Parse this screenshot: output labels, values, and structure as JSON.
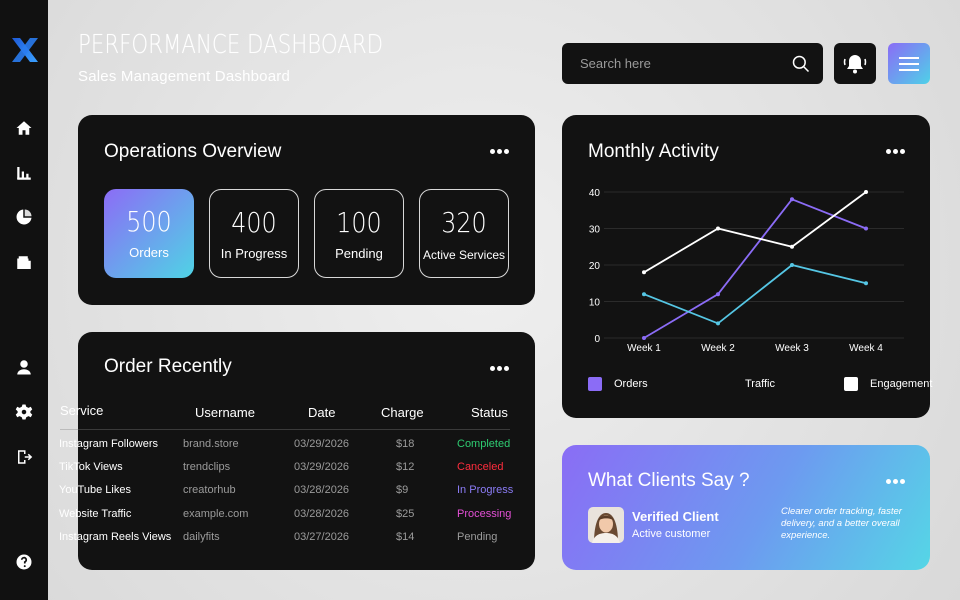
{
  "header": {
    "title": "PERFORMANCE DASHBOARD",
    "subtitle": "Sales Management Dashboard",
    "search_placeholder": "Search here"
  },
  "sidebar": {
    "icons": [
      "home-icon",
      "bar-chart-icon",
      "pie-chart-icon",
      "wallet-icon",
      "user-icon",
      "gear-icon",
      "logout-icon",
      "help-icon"
    ]
  },
  "operations": {
    "title": "Operations Overview",
    "stats": [
      {
        "value": "500",
        "label": "Orders"
      },
      {
        "value": "400",
        "label": "In Progress"
      },
      {
        "value": "100",
        "label": "Pending"
      },
      {
        "value": "320",
        "label": "Active Services"
      }
    ]
  },
  "orders": {
    "title": "Order Recently",
    "headers": [
      "Service",
      "Username",
      "Date",
      "Charge",
      "Status"
    ],
    "rows": [
      {
        "service": "Instagram Followers",
        "username": "brand.store",
        "date": "03/29/2026",
        "charge": "$18",
        "status": "Completed",
        "status_color": "#2ecc71"
      },
      {
        "service": "TikTok Views",
        "username": "trendclips",
        "date": "03/29/2026",
        "charge": "$12",
        "status": "Canceled",
        "status_color": "#ff2d3d"
      },
      {
        "service": "YouTube Likes",
        "username": "creatorhub",
        "date": "03/28/2026",
        "charge": "$9",
        "status": "In Progress",
        "status_color": "#8b7cf6"
      },
      {
        "service": "Website Traffic",
        "username": "example.com",
        "date": "03/28/2026",
        "charge": "$25",
        "status": "Processing",
        "status_color": "#e44fd6"
      },
      {
        "service": "Instagram Reels Views",
        "username": "dailyfits",
        "date": "03/27/2026",
        "charge": "$14",
        "status": "Pending",
        "status_color": "#9b9b9b"
      }
    ]
  },
  "activity": {
    "title": "Monthly Activity",
    "legend": [
      {
        "label": "Orders",
        "color": "#8b6cf6"
      },
      {
        "label": "Traffic",
        "color": "#55c6e4"
      },
      {
        "label": "Engagement",
        "color": "#ffffff"
      }
    ]
  },
  "chart_data": {
    "type": "line",
    "categories": [
      "Week 1",
      "Week 2",
      "Week 3",
      "Week 4"
    ],
    "series": [
      {
        "name": "Orders",
        "values": [
          0,
          12,
          38,
          30
        ],
        "color": "#8b6cf6"
      },
      {
        "name": "Traffic",
        "values": [
          12,
          4,
          20,
          15
        ],
        "color": "#55c6e4"
      },
      {
        "name": "Engagement",
        "values": [
          18,
          30,
          25,
          40
        ],
        "color": "#ffffff"
      }
    ],
    "yticks": [
      0,
      10,
      20,
      30,
      40
    ],
    "ylim": [
      0,
      40
    ],
    "grid": true,
    "legend_position": "bottom"
  },
  "testimonial": {
    "title": "What Clients Say ?",
    "name": "Verified Client",
    "role": "Active customer",
    "quote": "Clearer order tracking, faster delivery, and a better overall experience."
  }
}
